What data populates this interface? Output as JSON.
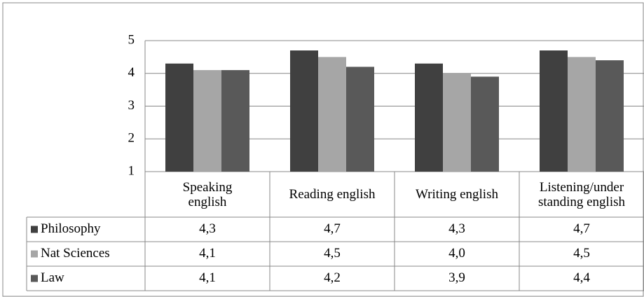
{
  "chart_data": {
    "type": "bar",
    "categories": [
      "Speaking\nenglish",
      "Reading english",
      "Writing english",
      "Listening/under\nstanding english"
    ],
    "series": [
      {
        "name": "Philosophy",
        "color": "#404040",
        "values": [
          4.3,
          4.7,
          4.3,
          4.7
        ],
        "value_labels": [
          "4,3",
          "4,7",
          "4,3",
          "4,7"
        ]
      },
      {
        "name": "Nat Sciences",
        "color": "#a6a6a6",
        "values": [
          4.1,
          4.5,
          4.0,
          4.5
        ],
        "value_labels": [
          "4,1",
          "4,5",
          "4,0",
          "4,5"
        ]
      },
      {
        "name": "Law",
        "color": "#595959",
        "values": [
          4.1,
          4.2,
          3.9,
          4.4
        ],
        "value_labels": [
          "4,1",
          "4,2",
          "3,9",
          "4,4"
        ]
      }
    ],
    "ylim": [
      1,
      5
    ],
    "yticks": [
      1,
      2,
      3,
      4,
      5
    ],
    "grid": true
  }
}
